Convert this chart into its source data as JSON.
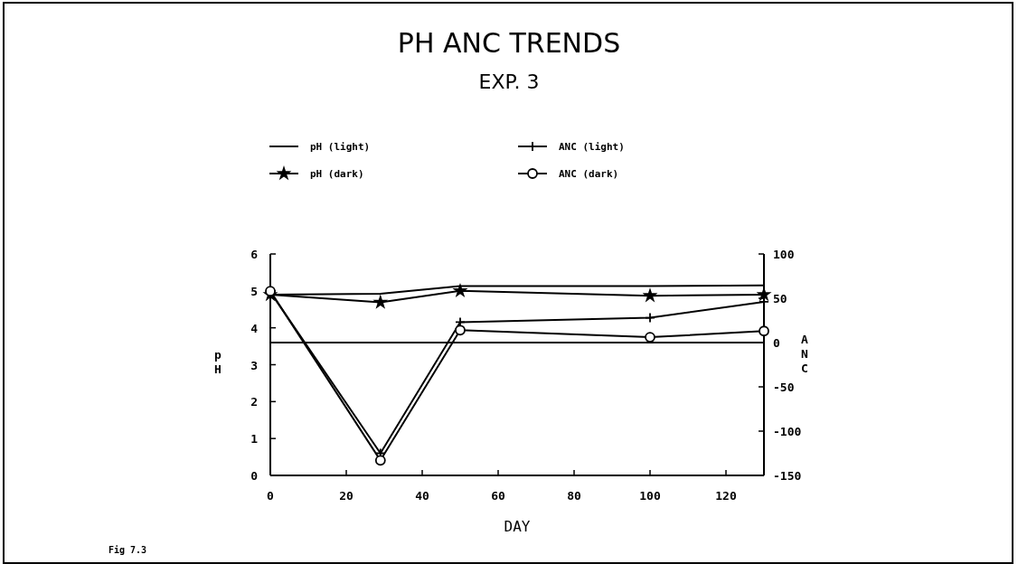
{
  "chart_data": {
    "type": "line",
    "title": "PH ANC TRENDS",
    "subtitle": "EXP. 3",
    "xlabel": "DAY",
    "ylabel": "pH",
    "y2label": "ANC",
    "x": [
      0,
      29,
      50,
      100,
      130
    ],
    "series": [
      {
        "name": "pH (light)",
        "color": "#000000",
        "values": [
          4.9,
          4.92,
          5.13,
          5.13,
          5.15
        ],
        "marker": "none"
      },
      {
        "name": "pH (dark)",
        "color": "#000000",
        "values": [
          4.9,
          4.69,
          5.0,
          4.87,
          4.9
        ],
        "marker": "star"
      },
      {
        "name": "ANC (light)",
        "color": "#000000",
        "values": [
          57,
          -125,
          23,
          28,
          46
        ],
        "marker": "cross",
        "axis": "y2"
      },
      {
        "name": "ANC (dark)",
        "color": "#000000",
        "values": [
          58,
          -133,
          14,
          6,
          13
        ],
        "marker": "circle",
        "axis": "y2"
      }
    ],
    "xlim": [
      0,
      130
    ],
    "xticks": [
      0,
      20,
      40,
      60,
      80,
      100,
      120
    ],
    "ylim": [
      0,
      6
    ],
    "yticks": [
      0,
      1,
      2,
      3,
      4,
      5,
      6
    ],
    "y2lim": [
      -150,
      100
    ],
    "y2ticks": [
      -150,
      -100,
      -50,
      0,
      50,
      100
    ],
    "ref_lines": [
      {
        "axis": "y2",
        "value": 0,
        "color": "#000000"
      }
    ],
    "legend": "top",
    "grid": false,
    "line_style": "solid",
    "annotations": [
      "Fig 7.3"
    ]
  }
}
